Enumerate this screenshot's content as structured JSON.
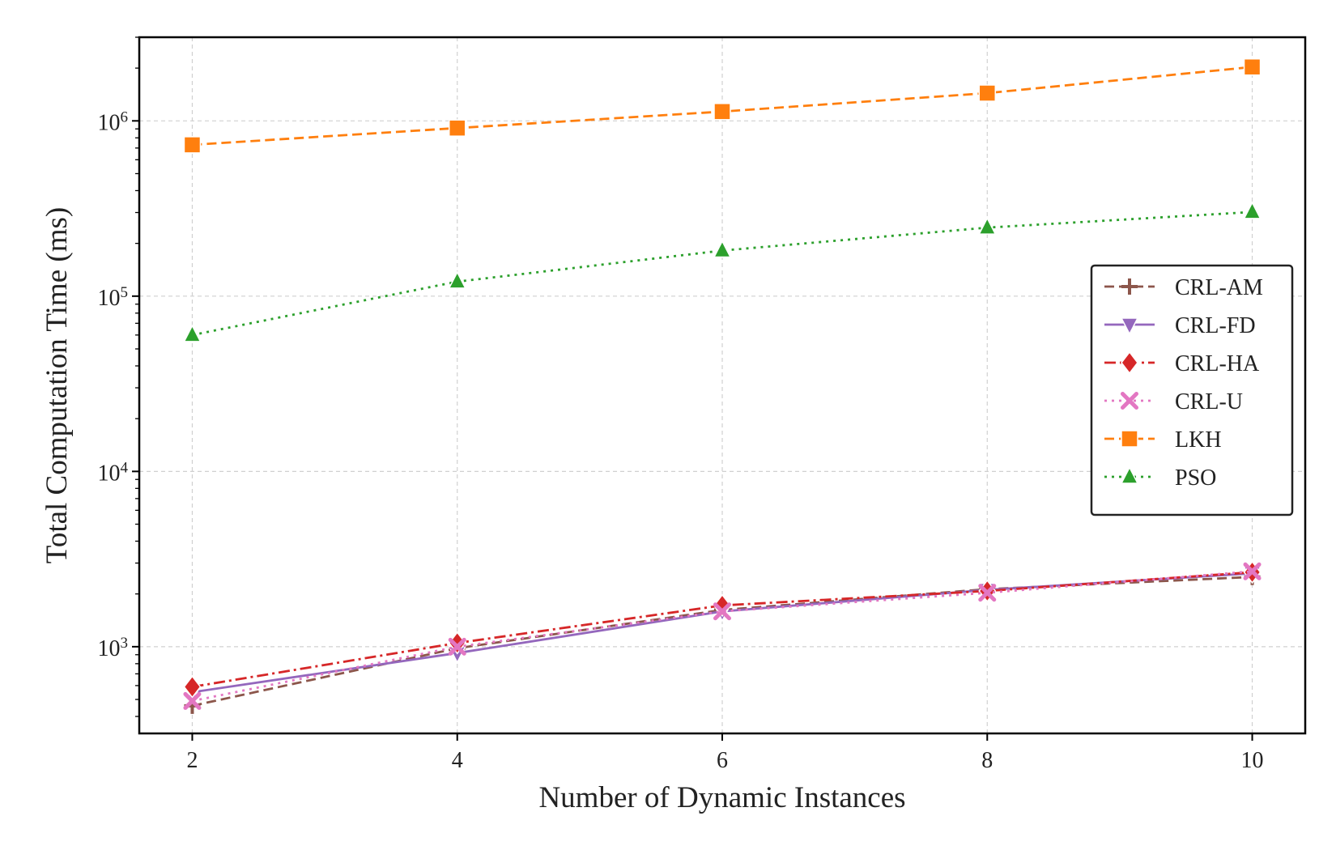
{
  "chart_data": {
    "type": "line",
    "title": "",
    "xlabel": "Number of Dynamic Instances",
    "ylabel": "Total Computation Time (ms)",
    "x": [
      2,
      4,
      6,
      8,
      10
    ],
    "xticks": [
      "2",
      "4",
      "6",
      "8",
      "10"
    ],
    "xlim": [
      1.6,
      10.4
    ],
    "yscale": "log",
    "ylim": [
      320,
      3000000
    ],
    "yticks": [
      {
        "value": 1000,
        "base": "10",
        "exp": "3"
      },
      {
        "value": 10000,
        "base": "10",
        "exp": "4"
      },
      {
        "value": 100000,
        "base": "10",
        "exp": "5"
      },
      {
        "value": 1000000,
        "base": "10",
        "exp": "6"
      }
    ],
    "grid": true,
    "legend_position": "center-right",
    "series": [
      {
        "name": "CRL-AM",
        "values": [
          460,
          980,
          1620,
          2130,
          2500
        ],
        "color": "#8c564b",
        "marker": "plus",
        "dash": "dashed"
      },
      {
        "name": "CRL-FD",
        "values": [
          550,
          920,
          1590,
          2110,
          2620
        ],
        "color": "#9467bd",
        "marker": "triangle-down",
        "dash": "solid"
      },
      {
        "name": "CRL-HA",
        "values": [
          590,
          1050,
          1720,
          2080,
          2660
        ],
        "color": "#d62728",
        "marker": "diamond",
        "dash": "dashdot"
      },
      {
        "name": "CRL-U",
        "values": [
          490,
          1000,
          1590,
          2030,
          2690
        ],
        "color": "#e377c2",
        "marker": "x",
        "dash": "dotted"
      },
      {
        "name": "LKH",
        "values": [
          730000,
          910000,
          1130000,
          1440000,
          2030000
        ],
        "color": "#ff7f0e",
        "marker": "square",
        "dash": "dashed"
      },
      {
        "name": "PSO",
        "values": [
          60000,
          121000,
          182000,
          246000,
          302000
        ],
        "color": "#2ca02c",
        "marker": "triangle-up",
        "dash": "dotted"
      }
    ]
  }
}
